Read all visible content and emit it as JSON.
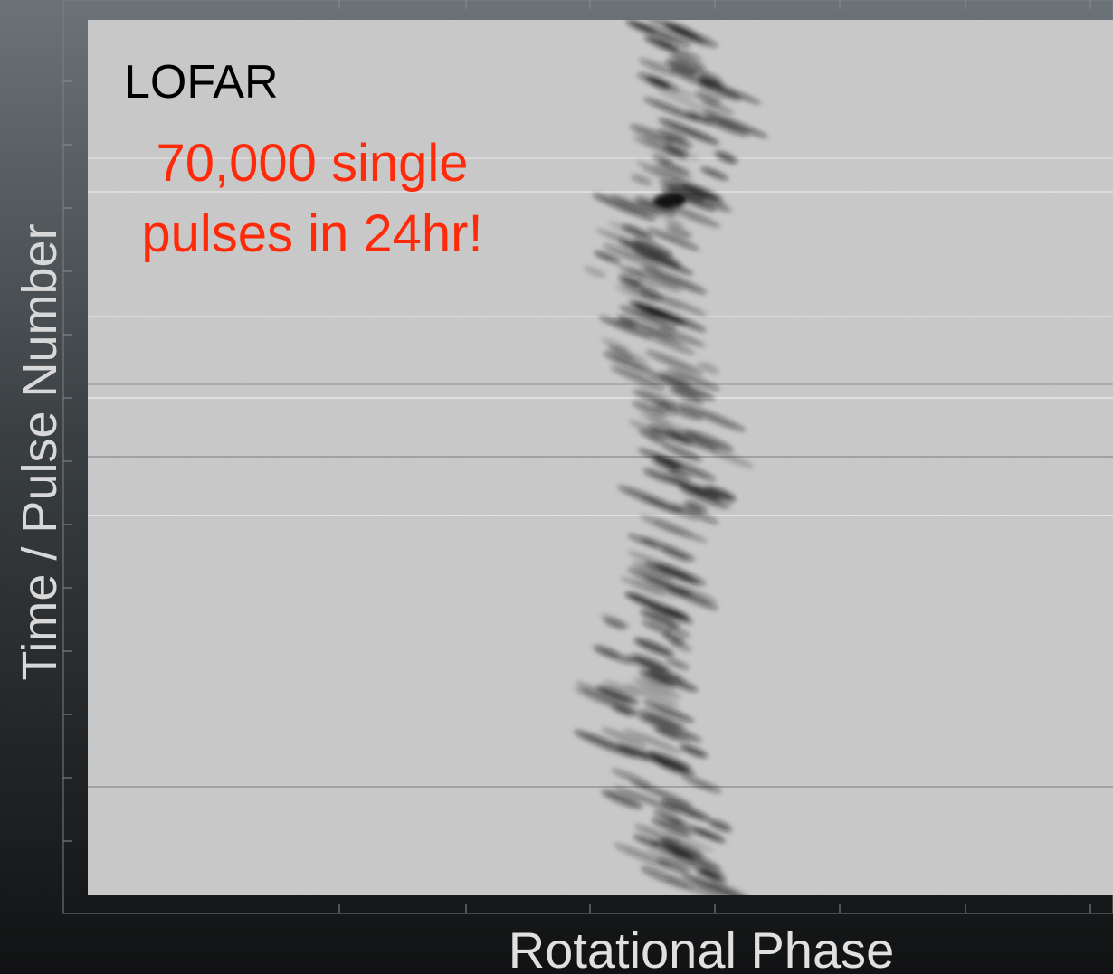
{
  "figure": {
    "label": "LOFAR",
    "annotation": [
      "70,000 single",
      "pulses in 24hr!"
    ],
    "y_axis_label": "Time / Pulse Number",
    "x_axis_label": "Rotational Phase"
  }
}
